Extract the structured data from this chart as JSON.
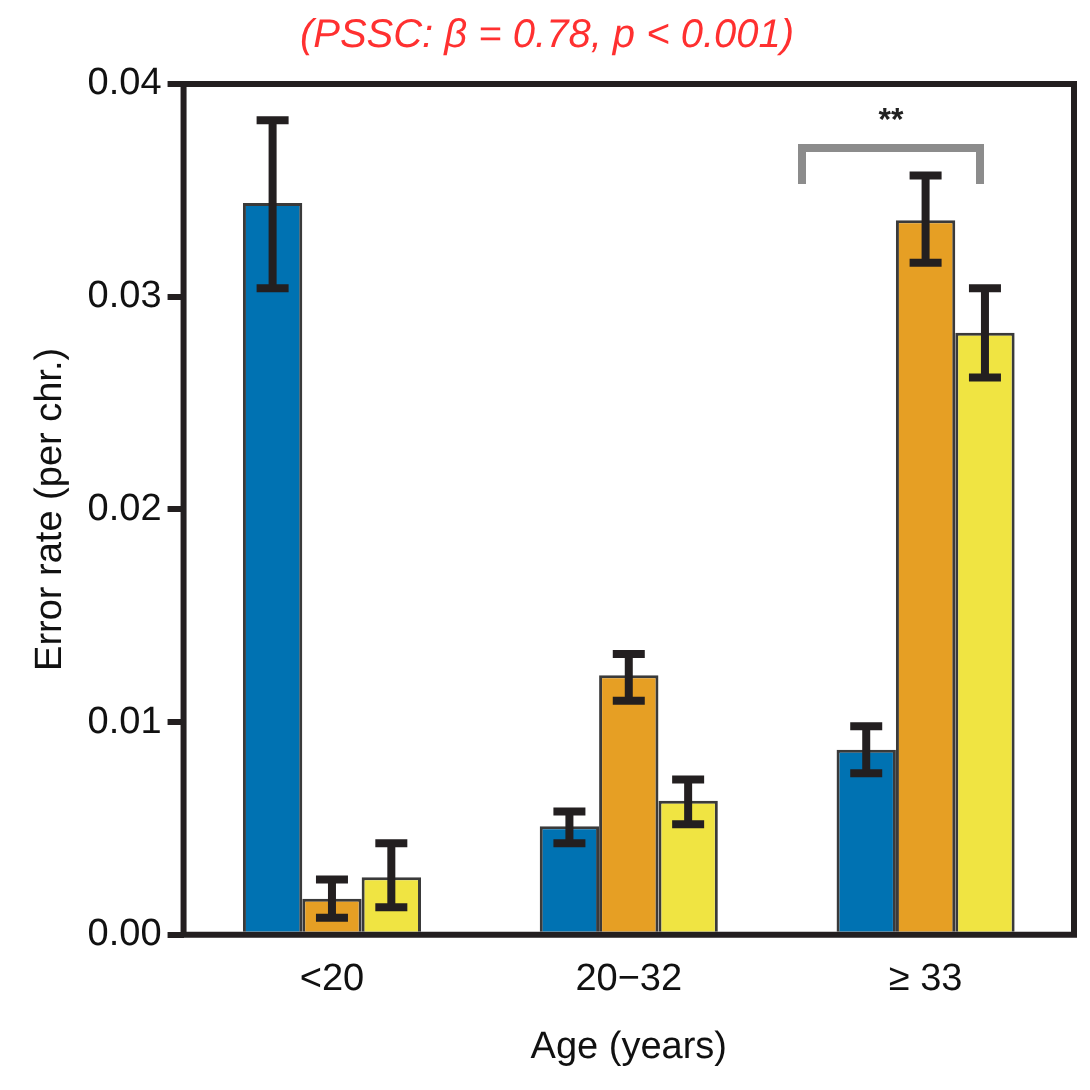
{
  "chart_data": {
    "type": "bar",
    "title": "(PSSC: β = 0.78, p < 0.001)",
    "xlabel": "Age (years)",
    "ylabel": "Error rate (per chr.)",
    "categories": [
      "<20",
      "20−32",
      "≥ 33"
    ],
    "series": [
      {
        "color": "#0072b2",
        "values": [
          0.0344,
          0.0051,
          0.0087
        ],
        "errors": [
          [
            0.0304,
            0.0383
          ],
          [
            0.0043,
            0.0058
          ],
          [
            0.0076,
            0.0098
          ]
        ]
      },
      {
        "color": "#e69f24",
        "values": [
          0.0017,
          0.0122,
          0.0336
        ],
        "errors": [
          [
            0.0008,
            0.0026
          ],
          [
            0.011,
            0.0132
          ],
          [
            0.0316,
            0.0357
          ]
        ]
      },
      {
        "color": "#f0e442",
        "values": [
          0.0027,
          0.0063,
          0.0283
        ],
        "errors": [
          [
            0.0013,
            0.0043
          ],
          [
            0.0052,
            0.0073
          ],
          [
            0.0262,
            0.0304
          ]
        ]
      }
    ],
    "ylim": [
      0,
      0.04
    ],
    "yticks": [
      {
        "value": 0,
        "label": "0.00"
      },
      {
        "value": 0.01,
        "label": "0.01"
      },
      {
        "value": 0.02,
        "label": "0.02"
      },
      {
        "value": 0.03,
        "label": "0.03"
      },
      {
        "value": 0.04,
        "label": "0.04"
      }
    ],
    "annotations": [
      "**"
    ],
    "grid": false,
    "legend": false
  }
}
